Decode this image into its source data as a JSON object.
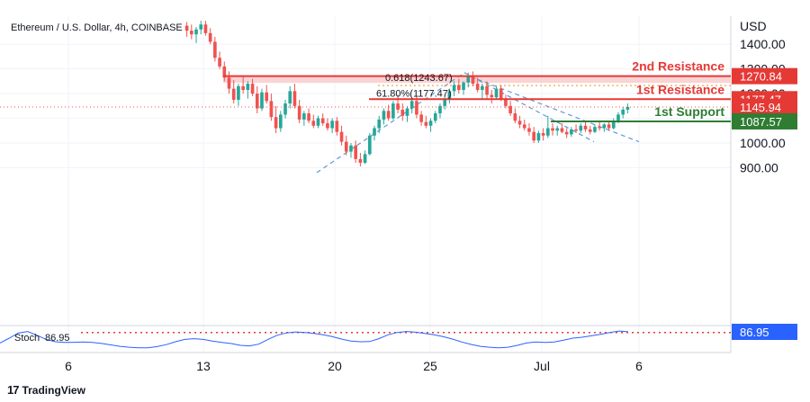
{
  "header": {
    "symbol": "Ethereum / U.S. Dollar, 4h, COINBASE"
  },
  "currency_label": "USD",
  "brand": {
    "logo_text": "17",
    "name": "TradingView"
  },
  "colors": {
    "up": "#26a69a",
    "down": "#ef5350",
    "resistance": "#e53935",
    "support": "#2e7d32",
    "fib": "#f6b26b",
    "trend": "#5b9bd5",
    "stoch": "#2962ff",
    "current": "#131722"
  },
  "chart_data": {
    "type": "candlestick",
    "instrument": "Ethereum / U.S. Dollar",
    "timeframe": "4h",
    "exchange": "COINBASE",
    "ylim": [
      860,
      1500
    ],
    "y_ticks": [
      {
        "value": 1400,
        "label": "1400.00"
      },
      {
        "value": 1300,
        "label": "1300.00"
      },
      {
        "value": 1200,
        "label": "1200.00"
      },
      {
        "value": 1100,
        "label": "1100.00"
      },
      {
        "value": 1000,
        "label": "1000.00"
      },
      {
        "value": 900,
        "label": "900.00"
      }
    ],
    "x_ticks": [
      {
        "label": "6",
        "index": 0
      },
      {
        "label": "13",
        "index": 1
      },
      {
        "label": "20",
        "index": 2
      },
      {
        "label": "25",
        "index": 3
      },
      {
        "label": "Jul",
        "index": 4
      },
      {
        "label": "6",
        "index": 5
      }
    ],
    "levels": [
      {
        "name": "2nd Resistance",
        "value": 1270.84,
        "label": "1270.84",
        "kind": "resistance"
      },
      {
        "name": "1st Resistance",
        "value": 1177.47,
        "label": "1177.47",
        "kind": "resistance"
      },
      {
        "name": "1st Support",
        "value": 1087.57,
        "label": "1087.57",
        "kind": "support"
      }
    ],
    "current_price": {
      "value": 1145.94,
      "label": "1145.94"
    },
    "fib_annotations": [
      {
        "text": "0.618(1243.67)",
        "value": 1243.67
      },
      {
        "text": "61.80%(1177.47)",
        "value": 1177.47
      }
    ],
    "candles": [
      [
        1475,
        1490,
        1430,
        1455
      ],
      [
        1455,
        1480,
        1420,
        1440
      ],
      [
        1440,
        1470,
        1405,
        1460
      ],
      [
        1460,
        1495,
        1440,
        1480
      ],
      [
        1480,
        1495,
        1435,
        1445
      ],
      [
        1445,
        1465,
        1400,
        1410
      ],
      [
        1410,
        1430,
        1330,
        1345
      ],
      [
        1345,
        1370,
        1300,
        1310
      ],
      [
        1310,
        1330,
        1250,
        1265
      ],
      [
        1265,
        1290,
        1200,
        1220
      ],
      [
        1220,
        1255,
        1160,
        1175
      ],
      [
        1175,
        1240,
        1150,
        1230
      ],
      [
        1230,
        1270,
        1200,
        1215
      ],
      [
        1215,
        1250,
        1180,
        1240
      ],
      [
        1240,
        1260,
        1190,
        1200
      ],
      [
        1200,
        1230,
        1120,
        1140
      ],
      [
        1140,
        1220,
        1130,
        1205
      ],
      [
        1205,
        1235,
        1160,
        1170
      ],
      [
        1170,
        1200,
        1090,
        1105
      ],
      [
        1105,
        1150,
        1040,
        1060
      ],
      [
        1060,
        1130,
        1045,
        1115
      ],
      [
        1115,
        1175,
        1100,
        1160
      ],
      [
        1160,
        1230,
        1140,
        1210
      ],
      [
        1210,
        1240,
        1140,
        1150
      ],
      [
        1150,
        1175,
        1080,
        1095
      ],
      [
        1095,
        1130,
        1070,
        1120
      ],
      [
        1120,
        1140,
        1080,
        1090
      ],
      [
        1090,
        1115,
        1060,
        1070
      ],
      [
        1070,
        1110,
        1060,
        1100
      ],
      [
        1100,
        1120,
        1070,
        1080
      ],
      [
        1080,
        1100,
        1050,
        1060
      ],
      [
        1060,
        1100,
        1040,
        1090
      ],
      [
        1090,
        1105,
        1030,
        1045
      ],
      [
        1045,
        1070,
        990,
        1005
      ],
      [
        1005,
        1030,
        950,
        965
      ],
      [
        965,
        1000,
        940,
        990
      ],
      [
        990,
        1010,
        920,
        935
      ],
      [
        935,
        960,
        905,
        920
      ],
      [
        920,
        970,
        915,
        955
      ],
      [
        955,
        1040,
        950,
        1030
      ],
      [
        1030,
        1070,
        1010,
        1060
      ],
      [
        1060,
        1110,
        1040,
        1095
      ],
      [
        1095,
        1140,
        1075,
        1130
      ],
      [
        1130,
        1155,
        1090,
        1100
      ],
      [
        1100,
        1170,
        1095,
        1160
      ],
      [
        1160,
        1195,
        1120,
        1135
      ],
      [
        1135,
        1160,
        1090,
        1110
      ],
      [
        1110,
        1150,
        1085,
        1140
      ],
      [
        1140,
        1180,
        1120,
        1170
      ],
      [
        1170,
        1190,
        1100,
        1115
      ],
      [
        1115,
        1130,
        1070,
        1085
      ],
      [
        1085,
        1110,
        1060,
        1070
      ],
      [
        1070,
        1100,
        1045,
        1090
      ],
      [
        1090,
        1130,
        1080,
        1120
      ],
      [
        1120,
        1160,
        1100,
        1150
      ],
      [
        1150,
        1190,
        1135,
        1180
      ],
      [
        1180,
        1220,
        1160,
        1210
      ],
      [
        1210,
        1250,
        1190,
        1235
      ],
      [
        1235,
        1260,
        1200,
        1215
      ],
      [
        1215,
        1250,
        1195,
        1245
      ],
      [
        1245,
        1285,
        1225,
        1270
      ],
      [
        1270,
        1290,
        1230,
        1240
      ],
      [
        1240,
        1265,
        1205,
        1215
      ],
      [
        1215,
        1240,
        1180,
        1230
      ],
      [
        1230,
        1250,
        1180,
        1195
      ],
      [
        1195,
        1215,
        1160,
        1185
      ],
      [
        1185,
        1230,
        1175,
        1220
      ],
      [
        1220,
        1235,
        1170,
        1180
      ],
      [
        1180,
        1195,
        1140,
        1150
      ],
      [
        1150,
        1170,
        1110,
        1120
      ],
      [
        1120,
        1140,
        1080,
        1090
      ],
      [
        1090,
        1110,
        1060,
        1075
      ],
      [
        1075,
        1095,
        1050,
        1060
      ],
      [
        1060,
        1080,
        1030,
        1045
      ],
      [
        1045,
        1065,
        1000,
        1010
      ],
      [
        1010,
        1050,
        1000,
        1040
      ],
      [
        1040,
        1060,
        1010,
        1030
      ],
      [
        1030,
        1110,
        1020,
        1060
      ],
      [
        1060,
        1080,
        1030,
        1050
      ],
      [
        1050,
        1070,
        1030,
        1060
      ],
      [
        1060,
        1080,
        1040,
        1045
      ],
      [
        1045,
        1060,
        1020,
        1035
      ],
      [
        1035,
        1065,
        1025,
        1055
      ],
      [
        1055,
        1075,
        1040,
        1050
      ],
      [
        1050,
        1080,
        1040,
        1070
      ],
      [
        1070,
        1085,
        1045,
        1055
      ],
      [
        1055,
        1070,
        1035,
        1045
      ],
      [
        1045,
        1075,
        1040,
        1065
      ],
      [
        1065,
        1085,
        1050,
        1060
      ],
      [
        1060,
        1080,
        1045,
        1075
      ],
      [
        1075,
        1090,
        1050,
        1060
      ],
      [
        1060,
        1100,
        1055,
        1090
      ],
      [
        1090,
        1125,
        1080,
        1115
      ],
      [
        1115,
        1145,
        1100,
        1135
      ],
      [
        1135,
        1160,
        1120,
        1146
      ]
    ],
    "stoch": {
      "label": "Stoch",
      "value": 86.95,
      "value_label": "86.95",
      "overbought": 80,
      "series": [
        40,
        60,
        82,
        88,
        72,
        55,
        45,
        42,
        43,
        44,
        42,
        38,
        32,
        26,
        22,
        20,
        20,
        25,
        33,
        45,
        55,
        58,
        55,
        48,
        42,
        38,
        30,
        28,
        35,
        55,
        72,
        82,
        86,
        84,
        80,
        74,
        66,
        56,
        48,
        45,
        46,
        58,
        74,
        84,
        88,
        85,
        80,
        74,
        66,
        56,
        44,
        34,
        26,
        22,
        20,
        22,
        30,
        40,
        44,
        42,
        44,
        52,
        60,
        64,
        70,
        76,
        84,
        90,
        87
      ]
    }
  }
}
